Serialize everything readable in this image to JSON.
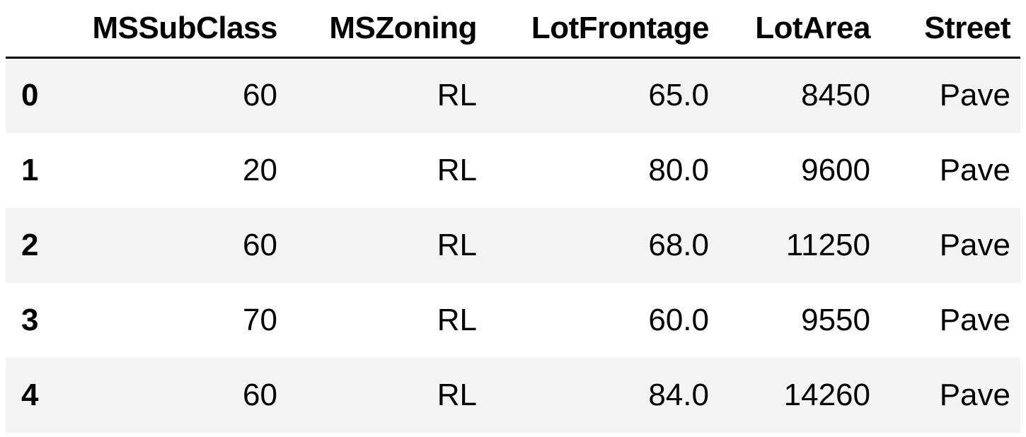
{
  "table": {
    "columns": [
      "MSSubClass",
      "MSZoning",
      "LotFrontage",
      "LotArea",
      "Street"
    ],
    "rows": [
      {
        "index": "0",
        "cells": [
          "60",
          "RL",
          "65.0",
          "8450",
          "Pave"
        ]
      },
      {
        "index": "1",
        "cells": [
          "20",
          "RL",
          "80.0",
          "9600",
          "Pave"
        ]
      },
      {
        "index": "2",
        "cells": [
          "60",
          "RL",
          "68.0",
          "11250",
          "Pave"
        ]
      },
      {
        "index": "3",
        "cells": [
          "70",
          "RL",
          "60.0",
          "9550",
          "Pave"
        ]
      },
      {
        "index": "4",
        "cells": [
          "60",
          "RL",
          "84.0",
          "14260",
          "Pave"
        ]
      }
    ],
    "colors": {
      "stripe": "#f4f4f4",
      "background": "#ffffff",
      "rule": "#000000"
    }
  }
}
